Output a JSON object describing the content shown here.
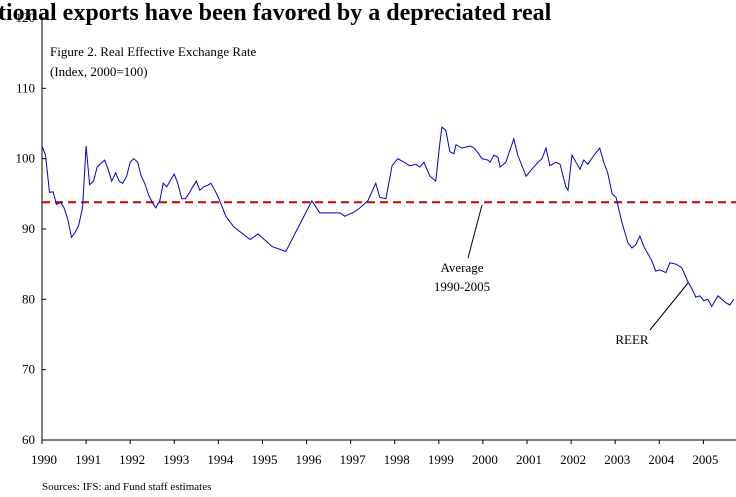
{
  "chart_data": {
    "type": "line",
    "title": "tional exports have been favored by a depreciated real",
    "subtitle": "Figure 2. Real Effective Exchange Rate",
    "unit_note": "(Index, 2000=100)",
    "source": "Sources: IFS: and Fund staff estimates",
    "annotations": [
      {
        "text": "Average",
        "text2": "1990-2005"
      },
      {
        "text": "REER"
      }
    ],
    "reference_line": {
      "value": 93.8,
      "color": "#cc0000"
    },
    "x": [
      1990.0,
      1990.08,
      1990.17,
      1990.25,
      1990.33,
      1990.42,
      1990.5,
      1990.58,
      1990.67,
      1990.75,
      1990.83,
      1990.92,
      1991.0,
      1991.08,
      1991.17,
      1991.25,
      1991.33,
      1991.42,
      1991.5,
      1991.58,
      1991.67,
      1991.75,
      1991.83,
      1991.92,
      1992.0,
      1992.08,
      1992.17,
      1992.25,
      1992.33,
      1992.42,
      1992.5,
      1992.58,
      1992.67,
      1992.75,
      1992.83,
      1992.92,
      1993.0,
      1993.08,
      1993.17,
      1993.25,
      1993.33,
      1993.42,
      1993.5,
      1993.58,
      1993.67,
      1993.75,
      1993.83,
      1993.92,
      1994.0,
      1994.17,
      1994.35,
      1994.72,
      1994.9,
      1995.22,
      1995.53,
      1996.12,
      1996.3,
      1996.76,
      1996.87,
      1997.1,
      1997.21,
      1997.39,
      1997.57,
      1997.66,
      1997.8,
      1997.94,
      1998.07,
      1998.21,
      1998.34,
      1998.48,
      1998.57,
      1998.66,
      1998.8,
      1998.93,
      1999.02,
      1999.07,
      1999.16,
      1999.25,
      1999.34,
      1999.39,
      1999.52,
      1999.71,
      1999.8,
      1999.89,
      1999.98,
      2000.11,
      2000.16,
      2000.25,
      2000.34,
      2000.39,
      2000.52,
      2000.7,
      2000.79,
      2000.98,
      2001.11,
      2001.25,
      2001.34,
      2001.43,
      2001.52,
      2001.66,
      2001.75,
      2001.88,
      2001.93,
      2002.02,
      2002.11,
      2002.2,
      2002.29,
      2002.38,
      2002.52,
      2002.65,
      2002.74,
      2002.83,
      2002.93,
      2003.02,
      2003.15,
      2003.29,
      2003.38,
      2003.47,
      2003.56,
      2003.65,
      2003.74,
      2003.83,
      2003.92,
      2004.01,
      2004.15,
      2004.24,
      2004.38,
      2004.51,
      2004.65,
      2004.74,
      2004.83,
      2004.92,
      2005.01,
      2005.1,
      2005.19,
      2005.33,
      2005.51,
      2005.6,
      2005.69
    ],
    "series": [
      {
        "name": "REER",
        "color": "#0000cc",
        "values": [
          101.8,
          100.5,
          95.2,
          95.3,
          93.5,
          93.8,
          93.0,
          91.5,
          88.8,
          89.5,
          90.5,
          93.0,
          101.8,
          96.3,
          96.8,
          98.8,
          99.3,
          99.8,
          98.5,
          96.8,
          98.0,
          96.8,
          96.5,
          97.5,
          99.5,
          100.0,
          99.5,
          97.5,
          96.5,
          94.8,
          93.8,
          93.0,
          94.0,
          96.5,
          96.0,
          97.0,
          97.8,
          96.5,
          94.3,
          94.3,
          95.0,
          96.0,
          96.8,
          95.5,
          96.0,
          96.2,
          96.5,
          95.5,
          94.5,
          91.8,
          90.3,
          88.5,
          89.3,
          87.5,
          86.8,
          94.0,
          92.3,
          92.3,
          91.8,
          92.5,
          93.0,
          94.0,
          96.5,
          94.5,
          94.3,
          99.0,
          100.0,
          99.5,
          99.0,
          99.2,
          98.8,
          99.5,
          97.5,
          96.8,
          102.0,
          104.5,
          104.0,
          101.0,
          100.7,
          102.0,
          101.5,
          101.8,
          101.5,
          100.8,
          100.0,
          99.8,
          99.5,
          100.5,
          100.2,
          98.8,
          99.5,
          102.8,
          100.5,
          97.5,
          98.5,
          99.5,
          100.0,
          101.5,
          99.0,
          99.5,
          99.2,
          96.0,
          95.5,
          100.5,
          99.5,
          98.5,
          99.8,
          99.2,
          100.5,
          101.5,
          99.5,
          98.0,
          95.0,
          94.5,
          91.0,
          88.0,
          87.3,
          87.8,
          89.0,
          87.5,
          86.5,
          85.5,
          84.0,
          84.2,
          83.8,
          85.2,
          85.0,
          84.5,
          82.5,
          81.5,
          80.3,
          80.5,
          79.8,
          80.0,
          79.0,
          80.5,
          79.5,
          79.2,
          80.0
        ]
      }
    ],
    "xlim": [
      1990,
      2005.74
    ],
    "xticks": [
      1990,
      1991,
      1992,
      1993,
      1994,
      1995,
      1996,
      1997,
      1998,
      1999,
      2000,
      2001,
      2002,
      2003,
      2004,
      2005
    ],
    "ylim": [
      60,
      120
    ],
    "yticks": [
      60,
      70,
      80,
      90,
      100,
      110,
      120
    ],
    "grid": false
  }
}
